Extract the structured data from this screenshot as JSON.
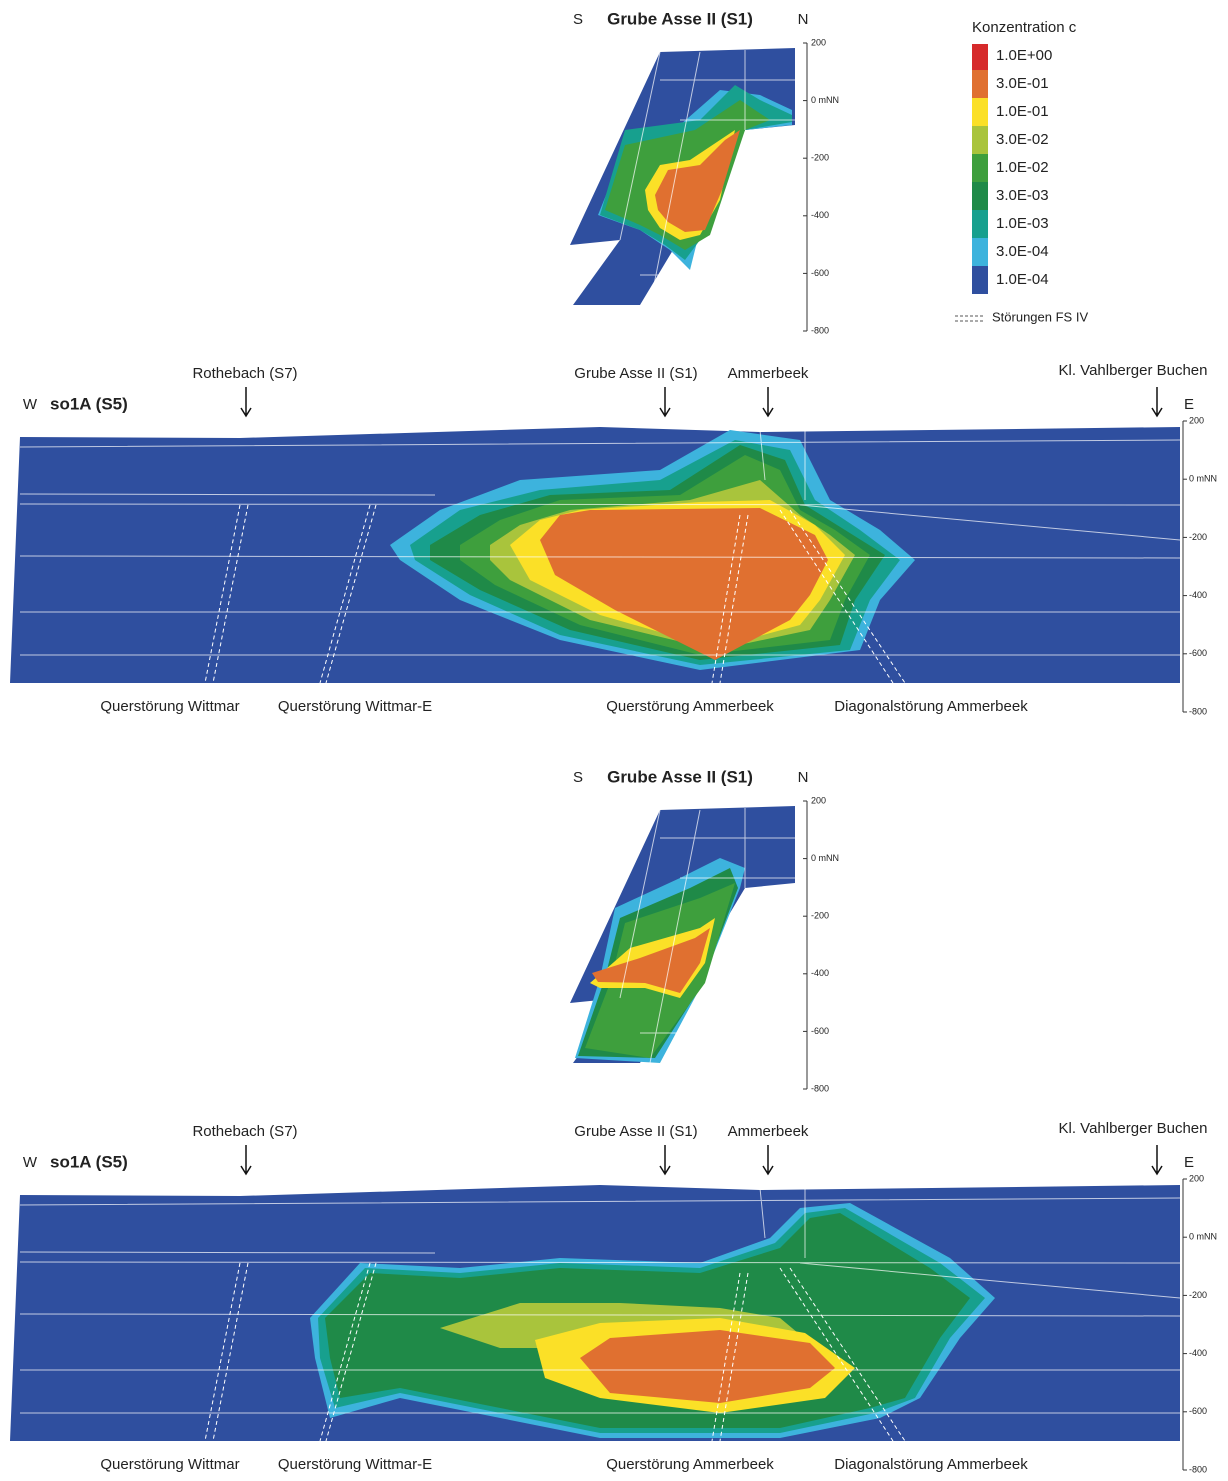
{
  "legend": {
    "title": "Konzentration c",
    "items": [
      {
        "label": "1.0E+00",
        "color": "#d62a2b"
      },
      {
        "label": "3.0E-01",
        "color": "#e07030"
      },
      {
        "label": "1.0E-01",
        "color": "#fbe027"
      },
      {
        "label": "3.0E-02",
        "color": "#a9c43c"
      },
      {
        "label": "1.0E-02",
        "color": "#3e9f3d"
      },
      {
        "label": "3.0E-03",
        "color": "#1f8a48"
      },
      {
        "label": "1.0E-03",
        "color": "#17a08e"
      },
      {
        "label": "3.0E-04",
        "color": "#3db3dd"
      },
      {
        "label": "1.0E-04",
        "color": "#2f4f9f"
      }
    ],
    "faults": "Störungen FS IV"
  },
  "panels": [
    {
      "section": {
        "s": "S",
        "title": "Grube Asse II (S1)",
        "n": "N",
        "ticks": [
          "200",
          "0 mNN",
          "-200",
          "-400",
          "-600",
          "-800"
        ]
      },
      "profile": {
        "w": "W",
        "title": "so1A (S5)",
        "e": "E",
        "markers": [
          "Rothebach (S7)",
          "Grube Asse II (S1)",
          "Ammerbeek",
          "Kl. Vahlberger Buchen"
        ],
        "faults": [
          "Querstörung Wittmar",
          "Querstörung Wittmar-E",
          "Querstörung Ammerbeek",
          "Diagonalstörung Ammerbeek"
        ],
        "ticks": [
          "200",
          "0 mNN",
          "-200",
          "-400",
          "-600",
          "-800"
        ]
      }
    },
    {
      "section": {
        "s": "S",
        "title": "Grube Asse II (S1)",
        "n": "N",
        "ticks": [
          "200",
          "0 mNN",
          "-200",
          "-400",
          "-600",
          "-800"
        ]
      },
      "profile": {
        "w": "W",
        "title": "so1A (S5)",
        "e": "E",
        "markers": [
          "Rothebach (S7)",
          "Grube Asse II (S1)",
          "Ammerbeek",
          "Kl. Vahlberger Buchen"
        ],
        "faults": [
          "Querstörung Wittmar",
          "Querstörung Wittmar-E",
          "Querstörung Ammerbeek",
          "Diagonalstörung Ammerbeek"
        ],
        "ticks": [
          "200",
          "0 mNN",
          "-200",
          "-400",
          "-600",
          "-800"
        ]
      }
    }
  ]
}
